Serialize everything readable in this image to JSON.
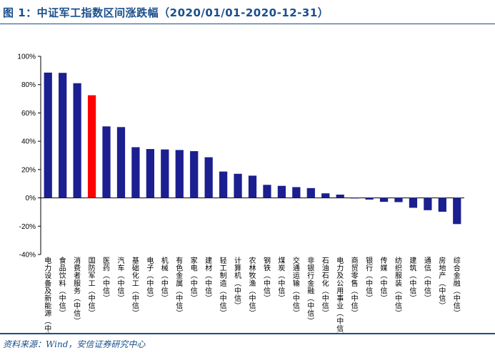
{
  "figure_title": "图 1：中证军工指数区间涨跌幅（2020/01/01-2020-12-31）",
  "source_note": "资料来源：Wind，安信证券研究中心",
  "colors": {
    "bar": "#1b1f8f",
    "highlight": "#ff0000",
    "title": "#1a4f8b"
  },
  "chart_data": {
    "type": "bar",
    "title": "",
    "xlabel": "",
    "ylabel": "",
    "ylim": [
      -40,
      100
    ],
    "yticks": [
      -40,
      -20,
      0,
      20,
      40,
      60,
      80,
      100
    ],
    "ytick_labels": [
      "-40%",
      "-20%",
      "0%",
      "20%",
      "40%",
      "60%",
      "80%",
      "100%"
    ],
    "grid": false,
    "highlight_category": "国防军工(中信)",
    "categories": [
      "电力设备及新能源(中信)",
      "食品饮料(中信)",
      "消费者服务(中信)",
      "国防军工(中信)",
      "医药(中信)",
      "汽车(中信)",
      "基础化工(中信)",
      "电子(中信)",
      "机械(中信)",
      "有色金属(中信)",
      "家电(中信)",
      "建材(中信)",
      "轻工制造(中信)",
      "计算机(中信)",
      "农林牧渔(中信)",
      "钢铁(中信)",
      "煤炭(中信)",
      "交通运输(中信)",
      "非银行金融(中信)",
      "石油石化(中信)",
      "电力及公用事业(中信)",
      "商贸零售(中信)",
      "银行(中信)",
      "传媒(中信)",
      "纺织服装(中信)",
      "建筑(中信)",
      "通信(中信)",
      "房地产(中信)",
      "综合金融(中信)"
    ],
    "values": [
      88.5,
      88.3,
      81.0,
      72.5,
      50.5,
      50.0,
      35.8,
      34.5,
      34.2,
      33.8,
      33.0,
      28.7,
      18.6,
      17.0,
      15.7,
      9.2,
      8.5,
      7.6,
      6.9,
      3.2,
      2.3,
      -0.3,
      -1.2,
      -2.8,
      -3.0,
      -7.0,
      -8.7,
      -9.8,
      -18.5
    ]
  }
}
